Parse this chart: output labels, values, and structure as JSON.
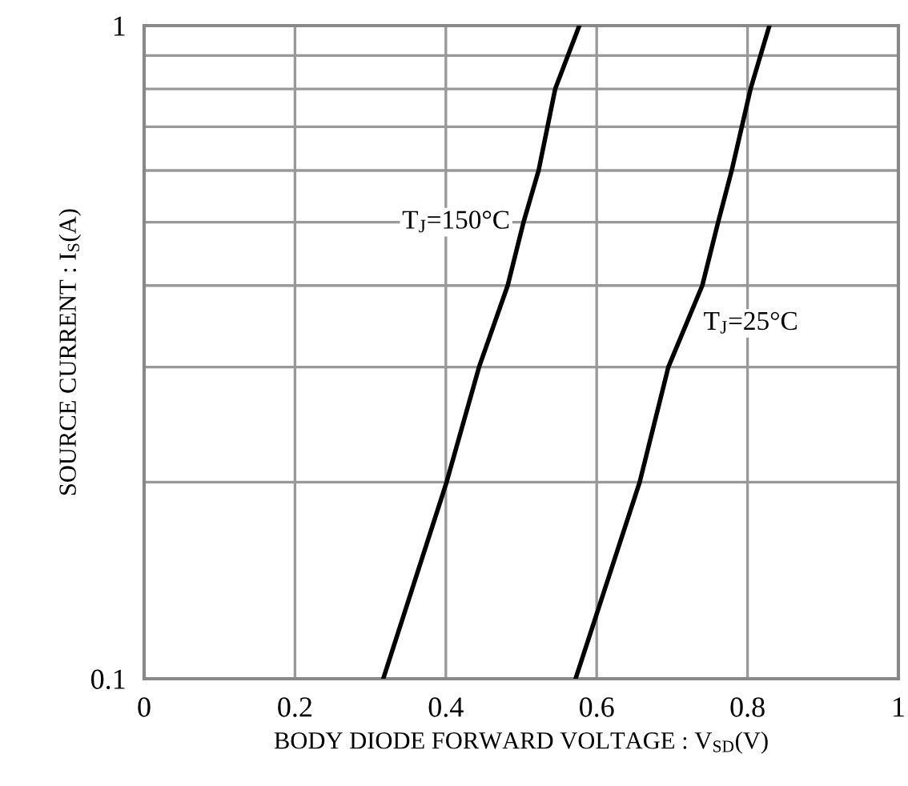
{
  "chart_data": {
    "type": "line",
    "xlabel": "BODY DIODE FORWARD VOLTAGE : V$_{SD}$(V)",
    "ylabel": "SOURCE CURRENT : I$_{S}$(A)",
    "log": "y",
    "grid": true,
    "line_style": "solid",
    "marker": "none",
    "xlim": [
      0,
      1
    ],
    "xticks": [
      0,
      0.2,
      0.4,
      0.6,
      0.8,
      1
    ],
    "ylim": [
      0.1,
      1
    ],
    "yticks": [
      0.1,
      {
        "value": 0.2,
        "label": null
      },
      {
        "value": 0.3,
        "label": null
      },
      {
        "value": 0.4,
        "label": null
      },
      {
        "value": 0.5,
        "label": null
      },
      {
        "value": 0.6,
        "label": null
      },
      {
        "value": 0.7,
        "label": null
      },
      {
        "value": 0.8,
        "label": null
      },
      {
        "value": 0.9,
        "label": null
      },
      1
    ],
    "series": [
      {
        "color": "#000000",
        "x": [
          0.317,
          0.401,
          0.444,
          0.482,
          0.503,
          0.523,
          0.545,
          0.577
        ],
        "values": [
          0.1,
          0.2,
          0.3,
          0.4,
          0.5,
          0.6,
          0.8,
          1
        ]
      },
      {
        "color": "#000000",
        "x": [
          0.572,
          0.657,
          0.695,
          0.74,
          0.761,
          0.779,
          0.804,
          0.829
        ],
        "values": [
          0.1,
          0.2,
          0.3,
          0.4,
          0.5,
          0.6,
          0.8,
          1
        ]
      }
    ],
    "annotations": [
      {
        "text": "T$_{J}$=150°C",
        "x": 0.503,
        "y": 0.5
      },
      {
        "text": "T$_{J}$=25°C",
        "x": 0.718,
        "y": 0.35
      }
    ]
  }
}
